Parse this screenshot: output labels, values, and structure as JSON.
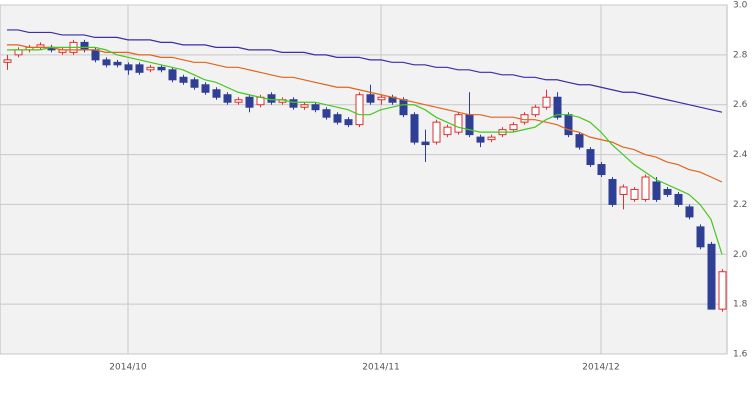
{
  "chart_data": {
    "type": "candlestick",
    "categories": [
      null,
      null,
      null,
      null,
      null,
      null,
      null,
      null,
      null,
      null,
      null,
      "2014/10",
      null,
      null,
      null,
      null,
      null,
      null,
      null,
      null,
      null,
      null,
      null,
      null,
      null,
      null,
      null,
      null,
      null,
      null,
      null,
      null,
      null,
      null,
      "2014/11",
      null,
      null,
      null,
      null,
      null,
      null,
      null,
      null,
      null,
      null,
      null,
      null,
      null,
      null,
      null,
      null,
      null,
      null,
      null,
      "2014/12",
      null,
      null,
      null,
      null,
      null,
      null,
      null,
      null,
      null,
      null,
      null
    ],
    "open": [
      2.77,
      2.8,
      2.82,
      2.83,
      2.83,
      2.81,
      2.81,
      2.85,
      2.82,
      2.78,
      2.77,
      2.76,
      2.76,
      2.74,
      2.75,
      2.74,
      2.71,
      2.7,
      2.68,
      2.66,
      2.64,
      2.61,
      2.63,
      2.6,
      2.64,
      2.61,
      2.62,
      2.59,
      2.6,
      2.58,
      2.56,
      2.54,
      2.52,
      2.64,
      2.62,
      2.63,
      2.62,
      2.56,
      2.45,
      2.45,
      2.48,
      2.49,
      2.56,
      2.47,
      2.46,
      2.48,
      2.5,
      2.53,
      2.56,
      2.59,
      2.63,
      2.56,
      2.48,
      2.42,
      2.36,
      2.3,
      2.24,
      2.22,
      2.22,
      2.29,
      2.26,
      2.24,
      2.19,
      2.11,
      2.04,
      1.78
    ],
    "high": [
      2.8,
      2.83,
      2.84,
      2.85,
      2.84,
      2.83,
      2.86,
      2.86,
      2.83,
      2.79,
      2.78,
      2.77,
      2.77,
      2.76,
      2.76,
      2.75,
      2.72,
      2.71,
      2.69,
      2.67,
      2.65,
      2.63,
      2.64,
      2.64,
      2.65,
      2.63,
      2.63,
      2.61,
      2.61,
      2.59,
      2.57,
      2.55,
      2.65,
      2.68,
      2.64,
      2.64,
      2.63,
      2.57,
      2.5,
      2.54,
      2.52,
      2.57,
      2.65,
      2.48,
      2.48,
      2.51,
      2.53,
      2.57,
      2.6,
      2.66,
      2.65,
      2.57,
      2.49,
      2.43,
      2.37,
      2.31,
      2.28,
      2.27,
      2.32,
      2.31,
      2.27,
      2.25,
      2.2,
      2.12,
      2.05,
      1.94
    ],
    "low": [
      2.74,
      2.79,
      2.81,
      2.82,
      2.81,
      2.8,
      2.8,
      2.81,
      2.77,
      2.75,
      2.75,
      2.72,
      2.72,
      2.73,
      2.73,
      2.69,
      2.68,
      2.66,
      2.64,
      2.62,
      2.6,
      2.6,
      2.57,
      2.59,
      2.6,
      2.6,
      2.58,
      2.58,
      2.57,
      2.54,
      2.52,
      2.51,
      2.51,
      2.6,
      2.6,
      2.6,
      2.55,
      2.44,
      2.37,
      2.44,
      2.47,
      2.48,
      2.47,
      2.43,
      2.45,
      2.47,
      2.49,
      2.52,
      2.55,
      2.58,
      2.54,
      2.47,
      2.42,
      2.35,
      2.31,
      2.19,
      2.18,
      2.21,
      2.21,
      2.21,
      2.23,
      2.19,
      2.14,
      2.02,
      1.78,
      1.77
    ],
    "close": [
      2.78,
      2.82,
      2.83,
      2.84,
      2.82,
      2.82,
      2.85,
      2.82,
      2.78,
      2.76,
      2.76,
      2.74,
      2.73,
      2.75,
      2.74,
      2.7,
      2.69,
      2.67,
      2.65,
      2.63,
      2.61,
      2.62,
      2.59,
      2.63,
      2.61,
      2.62,
      2.59,
      2.6,
      2.58,
      2.55,
      2.53,
      2.52,
      2.64,
      2.61,
      2.63,
      2.61,
      2.56,
      2.45,
      2.44,
      2.53,
      2.51,
      2.56,
      2.48,
      2.45,
      2.47,
      2.5,
      2.52,
      2.56,
      2.59,
      2.63,
      2.55,
      2.48,
      2.43,
      2.36,
      2.32,
      2.2,
      2.27,
      2.26,
      2.31,
      2.22,
      2.24,
      2.2,
      2.15,
      2.03,
      1.78,
      1.93
    ],
    "up_color": "#e03030",
    "down_color": "#2f3f96",
    "series": [
      {
        "color": "#3b2fa3",
        "values": [
          2.9,
          2.9,
          2.89,
          2.89,
          2.89,
          2.88,
          2.88,
          2.88,
          2.87,
          2.87,
          2.87,
          2.86,
          2.86,
          2.86,
          2.85,
          2.85,
          2.84,
          2.84,
          2.84,
          2.83,
          2.83,
          2.83,
          2.82,
          2.82,
          2.82,
          2.81,
          2.81,
          2.81,
          2.8,
          2.8,
          2.79,
          2.79,
          2.79,
          2.78,
          2.78,
          2.77,
          2.77,
          2.76,
          2.76,
          2.75,
          2.75,
          2.74,
          2.74,
          2.73,
          2.73,
          2.72,
          2.72,
          2.71,
          2.71,
          2.7,
          2.7,
          2.69,
          2.68,
          2.68,
          2.67,
          2.66,
          2.65,
          2.65,
          2.64,
          2.63,
          2.62,
          2.61,
          2.6,
          2.59,
          2.58,
          2.57
        ]
      },
      {
        "color": "#e0651e",
        "values": [
          2.84,
          2.84,
          2.83,
          2.83,
          2.83,
          2.82,
          2.82,
          2.82,
          2.82,
          2.81,
          2.81,
          2.81,
          2.8,
          2.8,
          2.79,
          2.79,
          2.78,
          2.77,
          2.77,
          2.76,
          2.75,
          2.75,
          2.74,
          2.73,
          2.72,
          2.71,
          2.71,
          2.7,
          2.69,
          2.68,
          2.67,
          2.67,
          2.66,
          2.65,
          2.64,
          2.63,
          2.62,
          2.61,
          2.6,
          2.59,
          2.58,
          2.57,
          2.56,
          2.56,
          2.55,
          2.55,
          2.55,
          2.54,
          2.54,
          2.53,
          2.52,
          2.5,
          2.49,
          2.47,
          2.46,
          2.45,
          2.43,
          2.42,
          2.4,
          2.39,
          2.37,
          2.36,
          2.34,
          2.33,
          2.31,
          2.29
        ]
      },
      {
        "color": "#46c81e",
        "values": [
          2.82,
          2.82,
          2.82,
          2.82,
          2.83,
          2.83,
          2.83,
          2.83,
          2.83,
          2.82,
          2.8,
          2.79,
          2.78,
          2.77,
          2.76,
          2.75,
          2.74,
          2.72,
          2.7,
          2.69,
          2.67,
          2.65,
          2.64,
          2.63,
          2.62,
          2.62,
          2.61,
          2.61,
          2.61,
          2.6,
          2.59,
          2.58,
          2.56,
          2.56,
          2.58,
          2.59,
          2.6,
          2.6,
          2.58,
          2.55,
          2.53,
          2.51,
          2.5,
          2.49,
          2.49,
          2.49,
          2.49,
          2.5,
          2.51,
          2.54,
          2.56,
          2.56,
          2.55,
          2.53,
          2.49,
          2.44,
          2.4,
          2.36,
          2.33,
          2.3,
          2.28,
          2.26,
          2.24,
          2.2,
          2.14,
          2.0
        ]
      }
    ],
    "ylim": [
      1.6,
      3.0
    ],
    "yticks": [
      1.6,
      1.8,
      {
        "value": 2.0,
        "label": "2.0"
      },
      2.2,
      2.4,
      2.6,
      2.8,
      {
        "value": 3.0,
        "label": "3.0"
      }
    ],
    "grid": true
  }
}
